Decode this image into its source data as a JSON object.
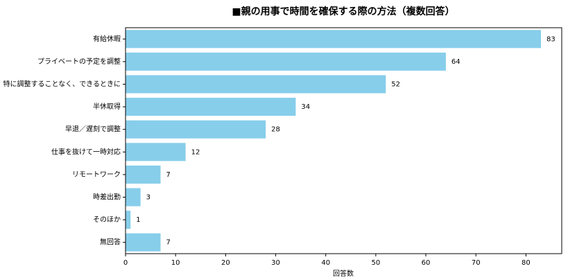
{
  "chart_data": {
    "type": "barh",
    "title": "■親の用事で時間を確保する際の方法（複数回答）",
    "xlabel": "回答数",
    "categories": [
      "有給休暇",
      "プライベートの予定を調整",
      "特に調整することなく、できるときに",
      "半休取得",
      "早退／遅刻で調整",
      "仕事を抜けて一時対応",
      "リモートワーク",
      "時差出勤",
      "そのほか",
      "無回答"
    ],
    "values": [
      83,
      64,
      52,
      34,
      28,
      12,
      7,
      3,
      1,
      7
    ],
    "color": "#87ceeb",
    "xlim": [
      0,
      87.15
    ],
    "xticks": [
      0,
      10,
      20,
      30,
      40,
      50,
      60,
      70,
      80
    ]
  }
}
